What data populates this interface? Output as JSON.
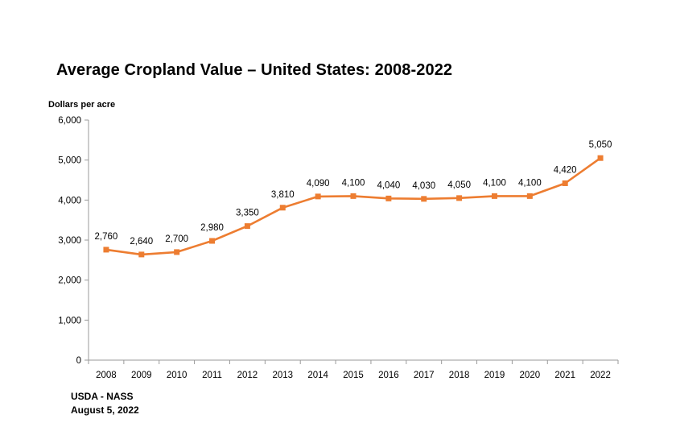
{
  "chart_data": {
    "type": "line",
    "title": "Average Cropland Value – United States: 2008-2022",
    "ylabel": "Dollars per acre",
    "xlabel": "",
    "categories": [
      "2008",
      "2009",
      "2010",
      "2011",
      "2012",
      "2013",
      "2014",
      "2015",
      "2016",
      "2017",
      "2018",
      "2019",
      "2020",
      "2021",
      "2022"
    ],
    "values": [
      2760,
      2640,
      2700,
      2980,
      3350,
      3810,
      4090,
      4100,
      4040,
      4030,
      4050,
      4100,
      4100,
      4420,
      5050
    ],
    "value_labels": [
      "2,760",
      "2,640",
      "2,700",
      "2,980",
      "3,350",
      "3,810",
      "4,090",
      "4,100",
      "4,040",
      "4,030",
      "4,050",
      "4,100",
      "4,100",
      "4,420",
      "5,050"
    ],
    "yticks": [
      0,
      1000,
      2000,
      3000,
      4000,
      5000,
      6000
    ],
    "ytick_labels": [
      "0",
      "1,000",
      "2,000",
      "3,000",
      "4,000",
      "5,000",
      "6,000"
    ],
    "ylim": [
      0,
      6000
    ],
    "grid": false,
    "line_color": "#ED7D31",
    "axis_color": "#9A9A9A"
  },
  "source": {
    "line1": "USDA - NASS",
    "line2": "August 5, 2022"
  }
}
